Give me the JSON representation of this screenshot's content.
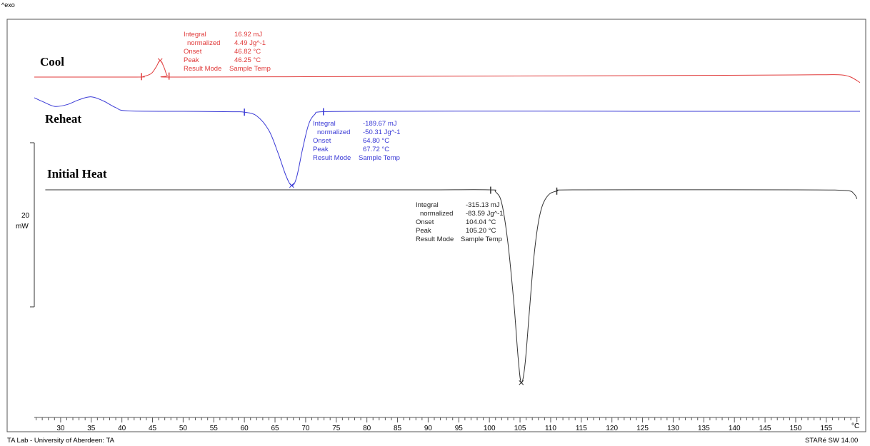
{
  "exo_label": "^exo",
  "footer_left": "TA Lab - University of Aberdeen: TA",
  "footer_right": "STARé SW 14.00",
  "scale_bar": {
    "value": "20",
    "unit": "mW"
  },
  "chart_data": {
    "type": "line",
    "title": "",
    "xlabel": "°C",
    "ylabel": "",
    "xlim": [
      25.7,
      160.5
    ],
    "x_ticks": [
      30,
      35,
      40,
      45,
      50,
      55,
      60,
      65,
      70,
      75,
      80,
      85,
      90,
      95,
      100,
      105,
      110,
      115,
      120,
      125,
      130,
      135,
      140,
      145,
      150,
      155
    ],
    "x_unit_label": "°C",
    "colors": {
      "cool": "#e03a3a",
      "reheat": "#3a3ad6",
      "initial": "#333333"
    },
    "series": [
      {
        "name": "Cool",
        "color": "#e03a3a",
        "points": [
          [
            25.7,
            0
          ],
          [
            42,
            0
          ],
          [
            43.5,
            0.15
          ],
          [
            44.8,
            0.9
          ],
          [
            45.6,
            2.6
          ],
          [
            46.25,
            4.2
          ],
          [
            46.9,
            2.4
          ],
          [
            47.4,
            0.4
          ],
          [
            48.2,
            0
          ],
          [
            70,
            0.1
          ],
          [
            100,
            0.25
          ],
          [
            130,
            0.4
          ],
          [
            150,
            0.55
          ],
          [
            155,
            0.6
          ],
          [
            157.5,
            0.55
          ],
          [
            159,
            0
          ],
          [
            160.5,
            -1.4
          ]
        ],
        "annotation": {
          "integral": "16.92 mJ",
          "normalized": "4.49 Jg^-1",
          "onset": "46.82 °C",
          "peak": "46.25 °C",
          "result_mode": "Sample Temp",
          "markers": [
            43.2,
            47.7
          ],
          "peak_x": 46.25
        }
      },
      {
        "name": "Reheat",
        "color": "#3a3ad6",
        "points": [
          [
            25.7,
            1.4
          ],
          [
            27,
            0.5
          ],
          [
            29,
            -0.7
          ],
          [
            31,
            -0.3
          ],
          [
            33,
            0.9
          ],
          [
            35,
            1.6
          ],
          [
            37,
            0.6
          ],
          [
            39,
            -1.0
          ],
          [
            41,
            -1.8
          ],
          [
            50,
            -1.9
          ],
          [
            58,
            -2.0
          ],
          [
            60,
            -2.1
          ],
          [
            62,
            -3.0
          ],
          [
            64,
            -6.5
          ],
          [
            65.5,
            -12.0
          ],
          [
            66.8,
            -17.5
          ],
          [
            67.72,
            -19.8
          ],
          [
            68.5,
            -18.0
          ],
          [
            69.5,
            -11.0
          ],
          [
            70.5,
            -5.0
          ],
          [
            71.5,
            -2.6
          ],
          [
            72.6,
            -2.0
          ],
          [
            80,
            -1.9
          ],
          [
            100,
            -1.85
          ],
          [
            130,
            -1.9
          ],
          [
            160.5,
            -1.9
          ]
        ],
        "annotation": {
          "integral": "-189.67 mJ",
          "normalized": "-50.31 Jg^-1",
          "onset": "64.80 °C",
          "peak": "67.72 °C",
          "result_mode": "Sample Temp",
          "markers": [
            60.0,
            72.9
          ],
          "peak_x": 67.72
        }
      },
      {
        "name": "Initial Heat",
        "color": "#333333",
        "points": [
          [
            27.5,
            0
          ],
          [
            40,
            0
          ],
          [
            70,
            0
          ],
          [
            90,
            0
          ],
          [
            100,
            0
          ],
          [
            101,
            -0.3
          ],
          [
            102,
            -2
          ],
          [
            103,
            -8
          ],
          [
            104,
            -17.5
          ],
          [
            104.7,
            -26
          ],
          [
            105.2,
            -29.7
          ],
          [
            105.8,
            -27
          ],
          [
            106.5,
            -19
          ],
          [
            107.3,
            -10
          ],
          [
            108.2,
            -4
          ],
          [
            109.3,
            -1.2
          ],
          [
            111,
            -0.2
          ],
          [
            115,
            0
          ],
          [
            150,
            0
          ],
          [
            158,
            -0.1
          ],
          [
            159.5,
            -0.6
          ],
          [
            160,
            -1.4
          ]
        ],
        "annotation": {
          "integral": "-315.13 mJ",
          "normalized": "-83.59 Jg^-1",
          "onset": "104.04 °C",
          "peak": "105.20 °C",
          "result_mode": "Sample Temp",
          "markers": [
            100.2,
            111.0
          ],
          "peak_x": 105.2
        }
      }
    ],
    "annotation_labels": {
      "integral": "Integral",
      "normalized": "normalized",
      "onset": "Onset",
      "peak": "Peak",
      "result_mode": "Result Mode"
    }
  }
}
